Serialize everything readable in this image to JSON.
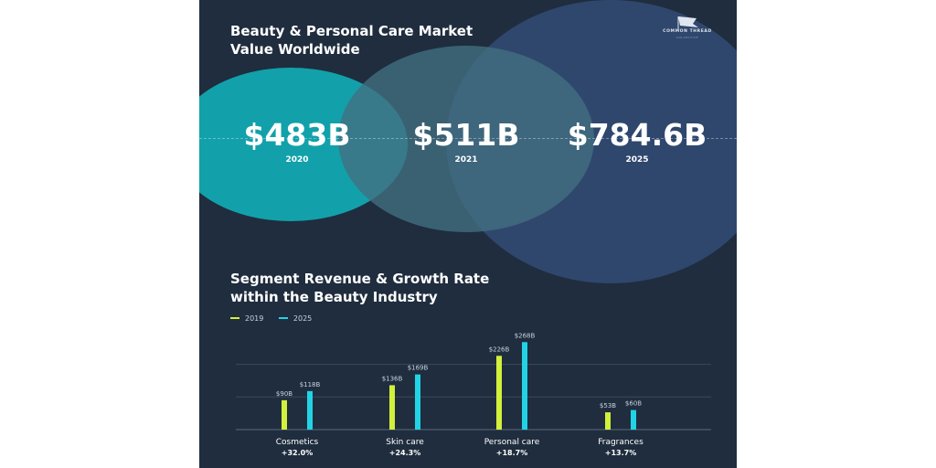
{
  "market": {
    "title": "Beauty & Personal Care Market Value Worldwide",
    "items": [
      {
        "value": "$483B",
        "year": "2020"
      },
      {
        "value": "$511B",
        "year": "2021"
      },
      {
        "value": "$784.6B",
        "year": "2025"
      }
    ]
  },
  "logo": {
    "name": "COMMON THREAD",
    "sub": "COLLECTIVE"
  },
  "segment": {
    "title": "Segment Revenue & Growth Rate within the Beauty Industry"
  },
  "colors": {
    "s2019": "#d2f03c",
    "s2025": "#22d3e6",
    "grid": "#3a4a5c"
  },
  "chart_data": {
    "type": "bar",
    "title": "Segment Revenue & Growth Rate within the Beauty Industry",
    "categories": [
      "Cosmetics",
      "Skin care",
      "Personal care",
      "Fragrances"
    ],
    "growth": [
      "+32.0%",
      "+24.3%",
      "+18.7%",
      "+13.7%"
    ],
    "series": [
      {
        "name": "2019",
        "values": [
          90,
          136,
          226,
          53
        ],
        "labels": [
          "$90B",
          "$136B",
          "$226B",
          "$53B"
        ]
      },
      {
        "name": "2025",
        "values": [
          118,
          169,
          268,
          60
        ],
        "labels": [
          "$118B",
          "$169B",
          "$268B",
          "$60B"
        ]
      }
    ],
    "ylim": [
      0,
      280
    ],
    "grid": true,
    "legend": "top-left"
  }
}
